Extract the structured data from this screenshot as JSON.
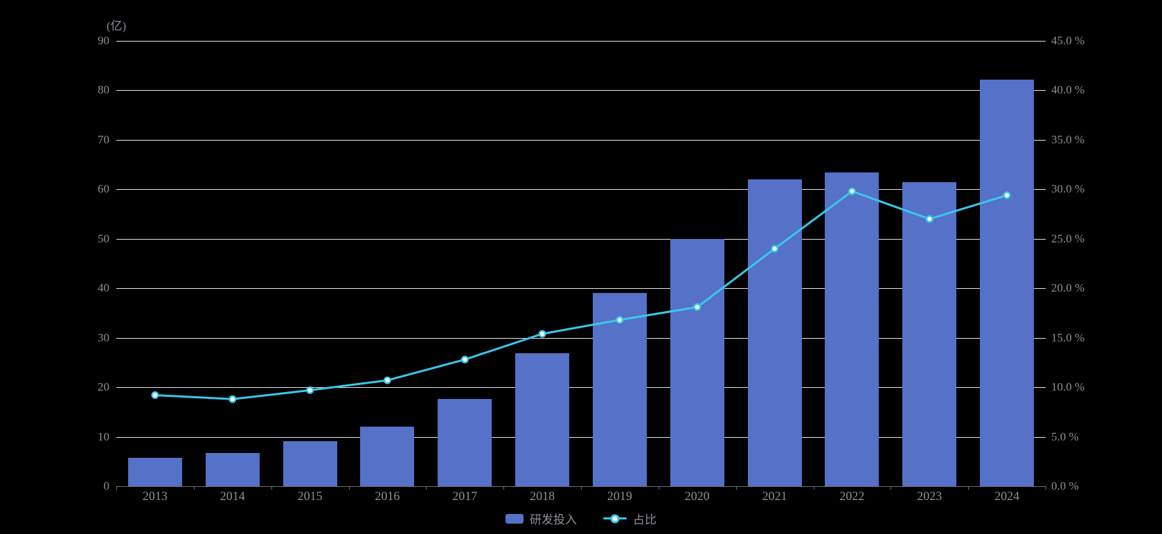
{
  "chart_data": {
    "type": "bar",
    "subtype": "bar+line dual-axis",
    "categories": [
      "2013",
      "2014",
      "2015",
      "2016",
      "2017",
      "2018",
      "2019",
      "2020",
      "2021",
      "2022",
      "2023",
      "2024"
    ],
    "series": [
      {
        "name": "研发投入",
        "type": "bar",
        "axis": "left",
        "unit": "亿",
        "values": [
          5.8,
          6.7,
          9.1,
          12.1,
          17.7,
          26.9,
          39.1,
          50,
          62,
          63.4,
          61.5,
          82.2
        ]
      },
      {
        "name": "占比",
        "type": "line",
        "axis": "right",
        "unit": "%",
        "values": [
          9.2,
          8.8,
          9.7,
          10.7,
          12.8,
          15.4,
          16.8,
          18.1,
          24,
          29.8,
          27,
          29.4
        ]
      }
    ],
    "title": "",
    "xlabel": "",
    "left_axis": {
      "label": "(亿)",
      "min": 0,
      "max": 90,
      "step": 10,
      "ticks": [
        "0",
        "10",
        "20",
        "30",
        "40",
        "50",
        "60",
        "70",
        "80",
        "90"
      ]
    },
    "right_axis": {
      "label": "",
      "min": 0,
      "max": 45,
      "step": 5,
      "ticks": [
        "0.0 %",
        "5.0 %",
        "10.0 %",
        "15.0 %",
        "20.0 %",
        "25.0 %",
        "30.0 %",
        "35.0 %",
        "40.0 %",
        "45.0 %"
      ]
    },
    "grid": true,
    "legend_position": "bottom"
  },
  "colors": {
    "background": "#000000",
    "bar": "#5571C8",
    "line": "#3BC7EA",
    "marker_fill": "#FFFFFF",
    "grid_line": "#E6E6EA",
    "axis_line": "#6E6E78",
    "tick_label": "#8F8F98",
    "legend_text": "#8F8F98"
  }
}
